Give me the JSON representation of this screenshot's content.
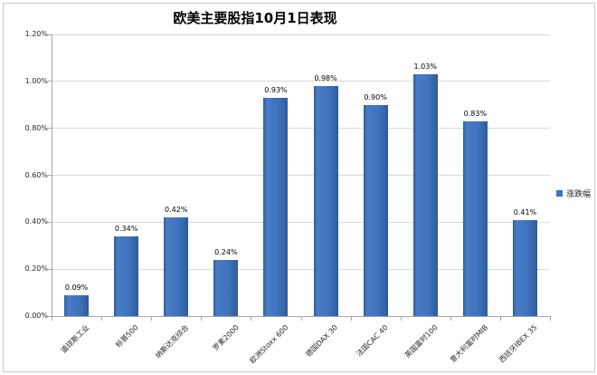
{
  "title": "欧美主要股指10月1日表现",
  "legend": {
    "label": "涨跌幅"
  },
  "colors": {
    "bar": "#3E72BC",
    "bar_light": "#4A7CC6",
    "bar_dark": "#2E5C99",
    "gridline": "#D9D9D9",
    "axis": "#A6A6A6",
    "frame_border": "#C9C9C9",
    "text": "#000000"
  },
  "chart_data": {
    "type": "bar",
    "title": "欧美主要股指10月1日表现",
    "categories": [
      "道琼斯工业",
      "标普500",
      "纳斯达克综合",
      "罗素2000",
      "欧洲Stoxx 600",
      "德国DAX 30",
      "法国CAC 40",
      "英国富时100",
      "意大利富时MIB",
      "西班牙IBEX 35"
    ],
    "series": [
      {
        "name": "涨跌幅",
        "values": [
          0.09,
          0.34,
          0.42,
          0.24,
          0.93,
          0.98,
          0.9,
          1.03,
          0.83,
          0.41
        ]
      }
    ],
    "data_labels": [
      "0.09%",
      "0.34%",
      "0.42%",
      "0.24%",
      "0.93%",
      "0.98%",
      "0.90%",
      "1.03%",
      "0.83%",
      "0.41%"
    ],
    "xlabel": "",
    "ylabel": "",
    "ylim": [
      0,
      1.2
    ],
    "y_ticks": [
      "0.00%",
      "0.20%",
      "0.40%",
      "0.60%",
      "0.80%",
      "1.00%",
      "1.20%"
    ],
    "grid": true,
    "legend_position": "right",
    "x_label_rotation_deg": -45
  }
}
